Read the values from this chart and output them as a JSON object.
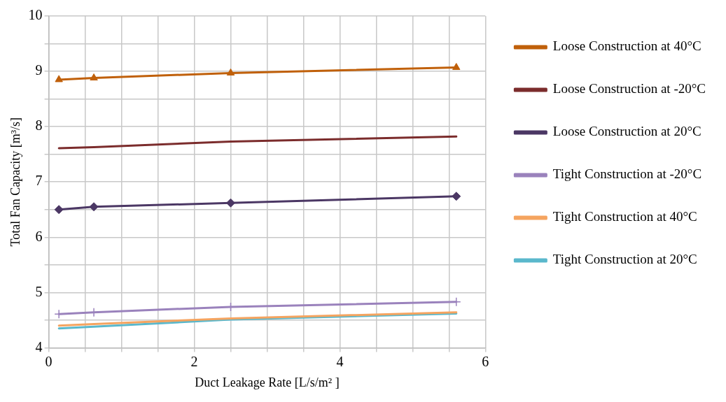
{
  "chart_data": {
    "type": "line",
    "xlabel": "Duct Leakage Rate [L/s/m² ]",
    "ylabel": "Total Fan Capacity [m³/s]",
    "x": [
      0.14,
      0.62,
      2.5,
      5.6
    ],
    "xlim": [
      0,
      6
    ],
    "xticks": [
      0,
      {
        "value": 0.5,
        "label": null
      },
      {
        "value": 1,
        "label": null
      },
      {
        "value": 1.5,
        "label": null
      },
      2,
      {
        "value": 2.5,
        "label": null
      },
      {
        "value": 3,
        "label": null
      },
      {
        "value": 3.5,
        "label": null
      },
      4,
      {
        "value": 4.5,
        "label": null
      },
      {
        "value": 5,
        "label": null
      },
      {
        "value": 5.5,
        "label": null
      },
      6
    ],
    "ylim": [
      4,
      10
    ],
    "yticks": [
      4,
      {
        "value": 4.5,
        "label": null
      },
      5,
      {
        "value": 5.5,
        "label": null
      },
      6,
      {
        "value": 6.5,
        "label": null
      },
      7,
      {
        "value": 7.5,
        "label": null
      },
      8,
      {
        "value": 8.5,
        "label": null
      },
      9,
      {
        "value": 9.5,
        "label": null
      },
      10
    ],
    "grid": true,
    "legend": "right",
    "series": [
      {
        "name": "Loose Construction at 40°C",
        "color": "#c0600a",
        "marker": "triangle",
        "values": [
          8.85,
          8.88,
          8.97,
          9.07
        ]
      },
      {
        "name": "Loose Construction at -20°C",
        "color": "#7b2c2c",
        "marker": "none",
        "values": [
          7.61,
          7.63,
          7.73,
          7.82
        ]
      },
      {
        "name": "Loose Construction at 20°C",
        "color": "#4b3764",
        "marker": "diamond",
        "values": [
          6.5,
          6.55,
          6.62,
          6.74
        ]
      },
      {
        "name": "Tight Construction at -20°C",
        "color": "#9a82bc",
        "marker": "cross",
        "values": [
          4.61,
          4.64,
          4.74,
          4.83
        ]
      },
      {
        "name": "Tight Construction at 40°C",
        "color": "#f5a460",
        "marker": "none",
        "values": [
          4.4,
          4.43,
          4.53,
          4.64
        ]
      },
      {
        "name": "Tight Construction at 20°C",
        "color": "#5ab8cc",
        "marker": "none",
        "values": [
          4.35,
          4.38,
          4.51,
          4.62
        ]
      }
    ]
  }
}
